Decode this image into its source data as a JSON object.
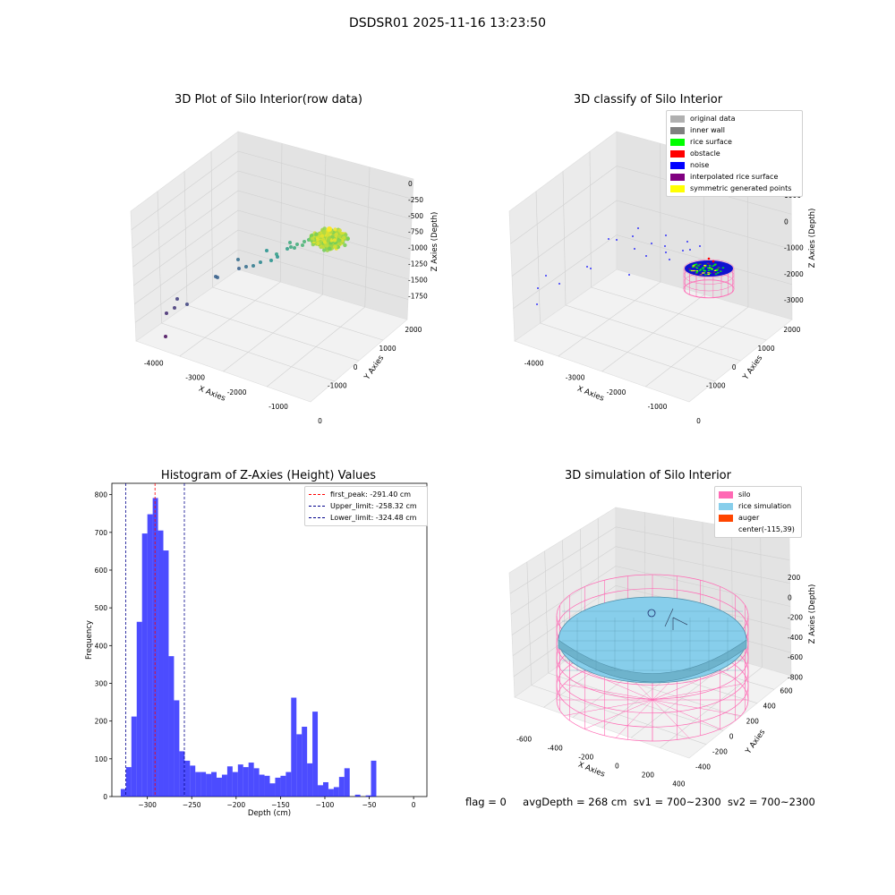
{
  "suptitle": "DSDSR01 2025-11-16 13:23:50",
  "status": {
    "flag": "flag = 0",
    "avg_depth": "avgDepth = 268 cm",
    "sv1": "sv1 = 700~2300",
    "sv2": "sv2 = 700~2300"
  },
  "chart_data": [
    {
      "type": "scatter",
      "title": "3D Plot of Silo Interior(row data)",
      "xlabel": "X Axies",
      "ylabel": "Y Axies",
      "zlabel": "Z Axies (Depth)",
      "x_ticks": [
        "-4000",
        "-3000",
        "-2000",
        "-1000",
        "0"
      ],
      "y_ticks": [
        "-1000",
        "0",
        "1000",
        "2000"
      ],
      "z_ticks": [
        "0",
        "-250",
        "-500",
        "-750",
        "-1000",
        "-1250",
        "-1500",
        "-1750"
      ],
      "colormap": "viridis",
      "grid": true
    },
    {
      "type": "scatter",
      "title": "3D classify of Silo Interior",
      "xlabel": "X Axies",
      "ylabel": "Y Axies",
      "zlabel": "Z Axies (Depth)",
      "x_ticks": [
        "-4000",
        "-3000",
        "-2000",
        "-1000",
        "0"
      ],
      "y_ticks": [
        "-1000",
        "0",
        "1000",
        "2000"
      ],
      "z_ticks": [
        "1000",
        "0",
        "-1000",
        "-2000",
        "-3000"
      ],
      "legend": [
        {
          "label": "original data",
          "color": "#b0b0b0"
        },
        {
          "label": "inner wall",
          "color": "#808080"
        },
        {
          "label": "rice surface",
          "color": "#00ff00"
        },
        {
          "label": "obstacle",
          "color": "#ff0000"
        },
        {
          "label": "noise",
          "color": "#0000ff"
        },
        {
          "label": "interpolated rice surface",
          "color": "#800080"
        },
        {
          "label": "symmetric generated points",
          "color": "#ffff00"
        }
      ],
      "legend_placement": "top-right",
      "grid": true
    },
    {
      "type": "bar",
      "title": "Histogram of Z-Axies (Height) Values",
      "xlabel": "Depth (cm)",
      "ylabel": "Frequency",
      "xlim": [
        -340,
        15
      ],
      "ylim": [
        0,
        830
      ],
      "x_ticks": [
        -300,
        -250,
        -200,
        -150,
        -100,
        -50,
        0
      ],
      "y_ticks": [
        0,
        100,
        200,
        300,
        400,
        500,
        600,
        700,
        800
      ],
      "bin_start": -330,
      "bin_width": 6,
      "values": [
        20,
        78,
        212,
        463,
        697,
        748,
        791,
        705,
        652,
        372,
        255,
        120,
        95,
        82,
        65,
        65,
        60,
        65,
        50,
        58,
        80,
        65,
        85,
        78,
        90,
        75,
        58,
        55,
        35,
        50,
        55,
        65,
        262,
        165,
        185,
        88,
        225,
        30,
        38,
        20,
        25,
        52,
        75,
        0,
        5,
        0,
        3,
        95
      ],
      "bar_color": "#0000ff",
      "vlines": [
        {
          "label": "first_peak: -291.40 cm",
          "x": -291.4,
          "color": "#ff0000"
        },
        {
          "label": "Upper_limit: -258.32 cm",
          "x": -258.32,
          "color": "#00008b"
        },
        {
          "label": "Lower_limit: -324.48 cm",
          "x": -324.48,
          "color": "#00008b"
        }
      ],
      "legend_placement": "top-right",
      "grid": false
    },
    {
      "type": "scatter",
      "title": "3D simulation of Silo Interior",
      "xlabel": "X Axies",
      "ylabel": "Y Axies",
      "zlabel": "Z Axies (Depth)",
      "x_ticks": [
        "-600",
        "-400",
        "-200",
        "0",
        "200",
        "400"
      ],
      "y_ticks": [
        "-400",
        "-200",
        "0",
        "200",
        "400",
        "600"
      ],
      "z_ticks": [
        "200",
        "0",
        "-200",
        "-400",
        "-600",
        "-800"
      ],
      "legend": [
        {
          "label": "silo",
          "color": "#ff69b4"
        },
        {
          "label": "rice simulation",
          "color": "#87ceeb"
        },
        {
          "label": "auger",
          "color": "#ff4500"
        },
        {
          "label": "center(-115,39)",
          "color": ""
        }
      ],
      "legend_placement": "top-right",
      "grid": true
    }
  ]
}
